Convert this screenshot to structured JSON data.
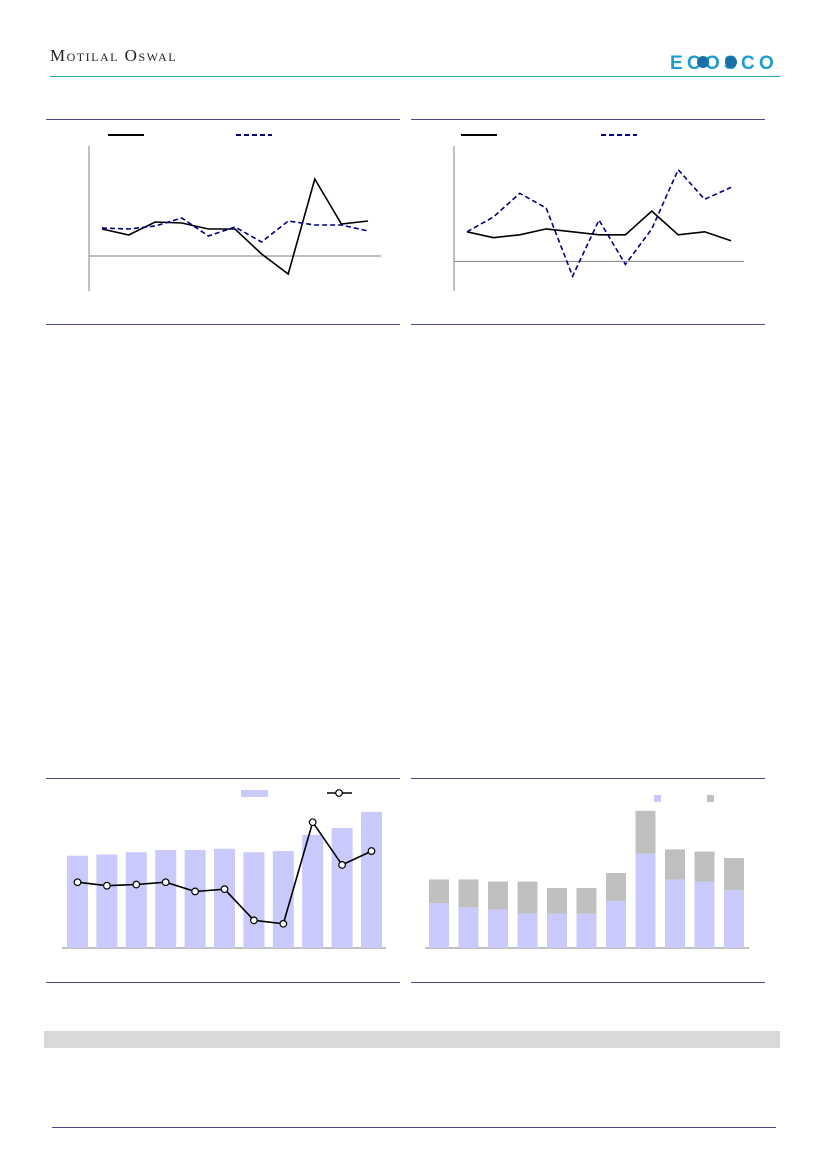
{
  "header": {
    "brand": "Motilal Oswal",
    "logo_text": "EcoScope",
    "colors": {
      "rule": "#2aa3a8",
      "logo": "#1f9bd1",
      "logo_globe": "#1b6fa8"
    }
  },
  "colors": {
    "line_solid": "#000000",
    "line_dashed": "#000080",
    "bar_primary": "#c9c9fb",
    "bar_secondary": "#bfbfbf",
    "frame_rule": "#4b4a8c",
    "band": "#d9d9d9"
  },
  "chart_data": [
    {
      "type": "line",
      "title": "",
      "series": [
        {
          "style": "solid",
          "values": [
            27,
            21,
            34,
            33,
            27,
            27,
            2,
            -18,
            77,
            32,
            35
          ]
        },
        {
          "style": "dashed",
          "values": [
            28,
            27,
            30,
            38,
            20,
            29,
            14,
            35,
            31,
            31,
            25
          ]
        }
      ],
      "ylim": [
        -35,
        110
      ],
      "zero_line": true
    },
    {
      "type": "line",
      "title": "",
      "series": [
        {
          "style": "solid",
          "values": [
            10,
            8,
            9,
            11,
            10,
            9,
            9,
            17,
            9,
            10,
            7
          ]
        },
        {
          "style": "dashed",
          "values": [
            10,
            15,
            23,
            18,
            -5,
            14,
            -1,
            11,
            31,
            21,
            25
          ]
        }
      ],
      "ylim": [
        -10,
        39
      ],
      "zero_line": true
    },
    {
      "type": "bar",
      "title": "",
      "bars": [
        80,
        81,
        83,
        85,
        85,
        86,
        83,
        84,
        98,
        104,
        118
      ],
      "line": [
        57,
        54,
        55,
        57,
        49,
        51,
        24,
        21,
        109,
        72,
        84
      ],
      "ylim": [
        0,
        130
      ],
      "legend": [
        {
          "marker": "bar"
        },
        {
          "marker": "line-circle"
        }
      ]
    },
    {
      "type": "bar",
      "title": "",
      "stacked": true,
      "series": [
        {
          "values": [
            42,
            38,
            36,
            32,
            32,
            32,
            44,
            88,
            64,
            62,
            54
          ]
        },
        {
          "values": [
            22,
            26,
            26,
            30,
            24,
            24,
            26,
            40,
            28,
            28,
            30
          ]
        }
      ],
      "ylim": [
        0,
        140
      ],
      "legend": [
        {
          "marker": "square-primary"
        },
        {
          "marker": "square-secondary"
        }
      ]
    }
  ]
}
